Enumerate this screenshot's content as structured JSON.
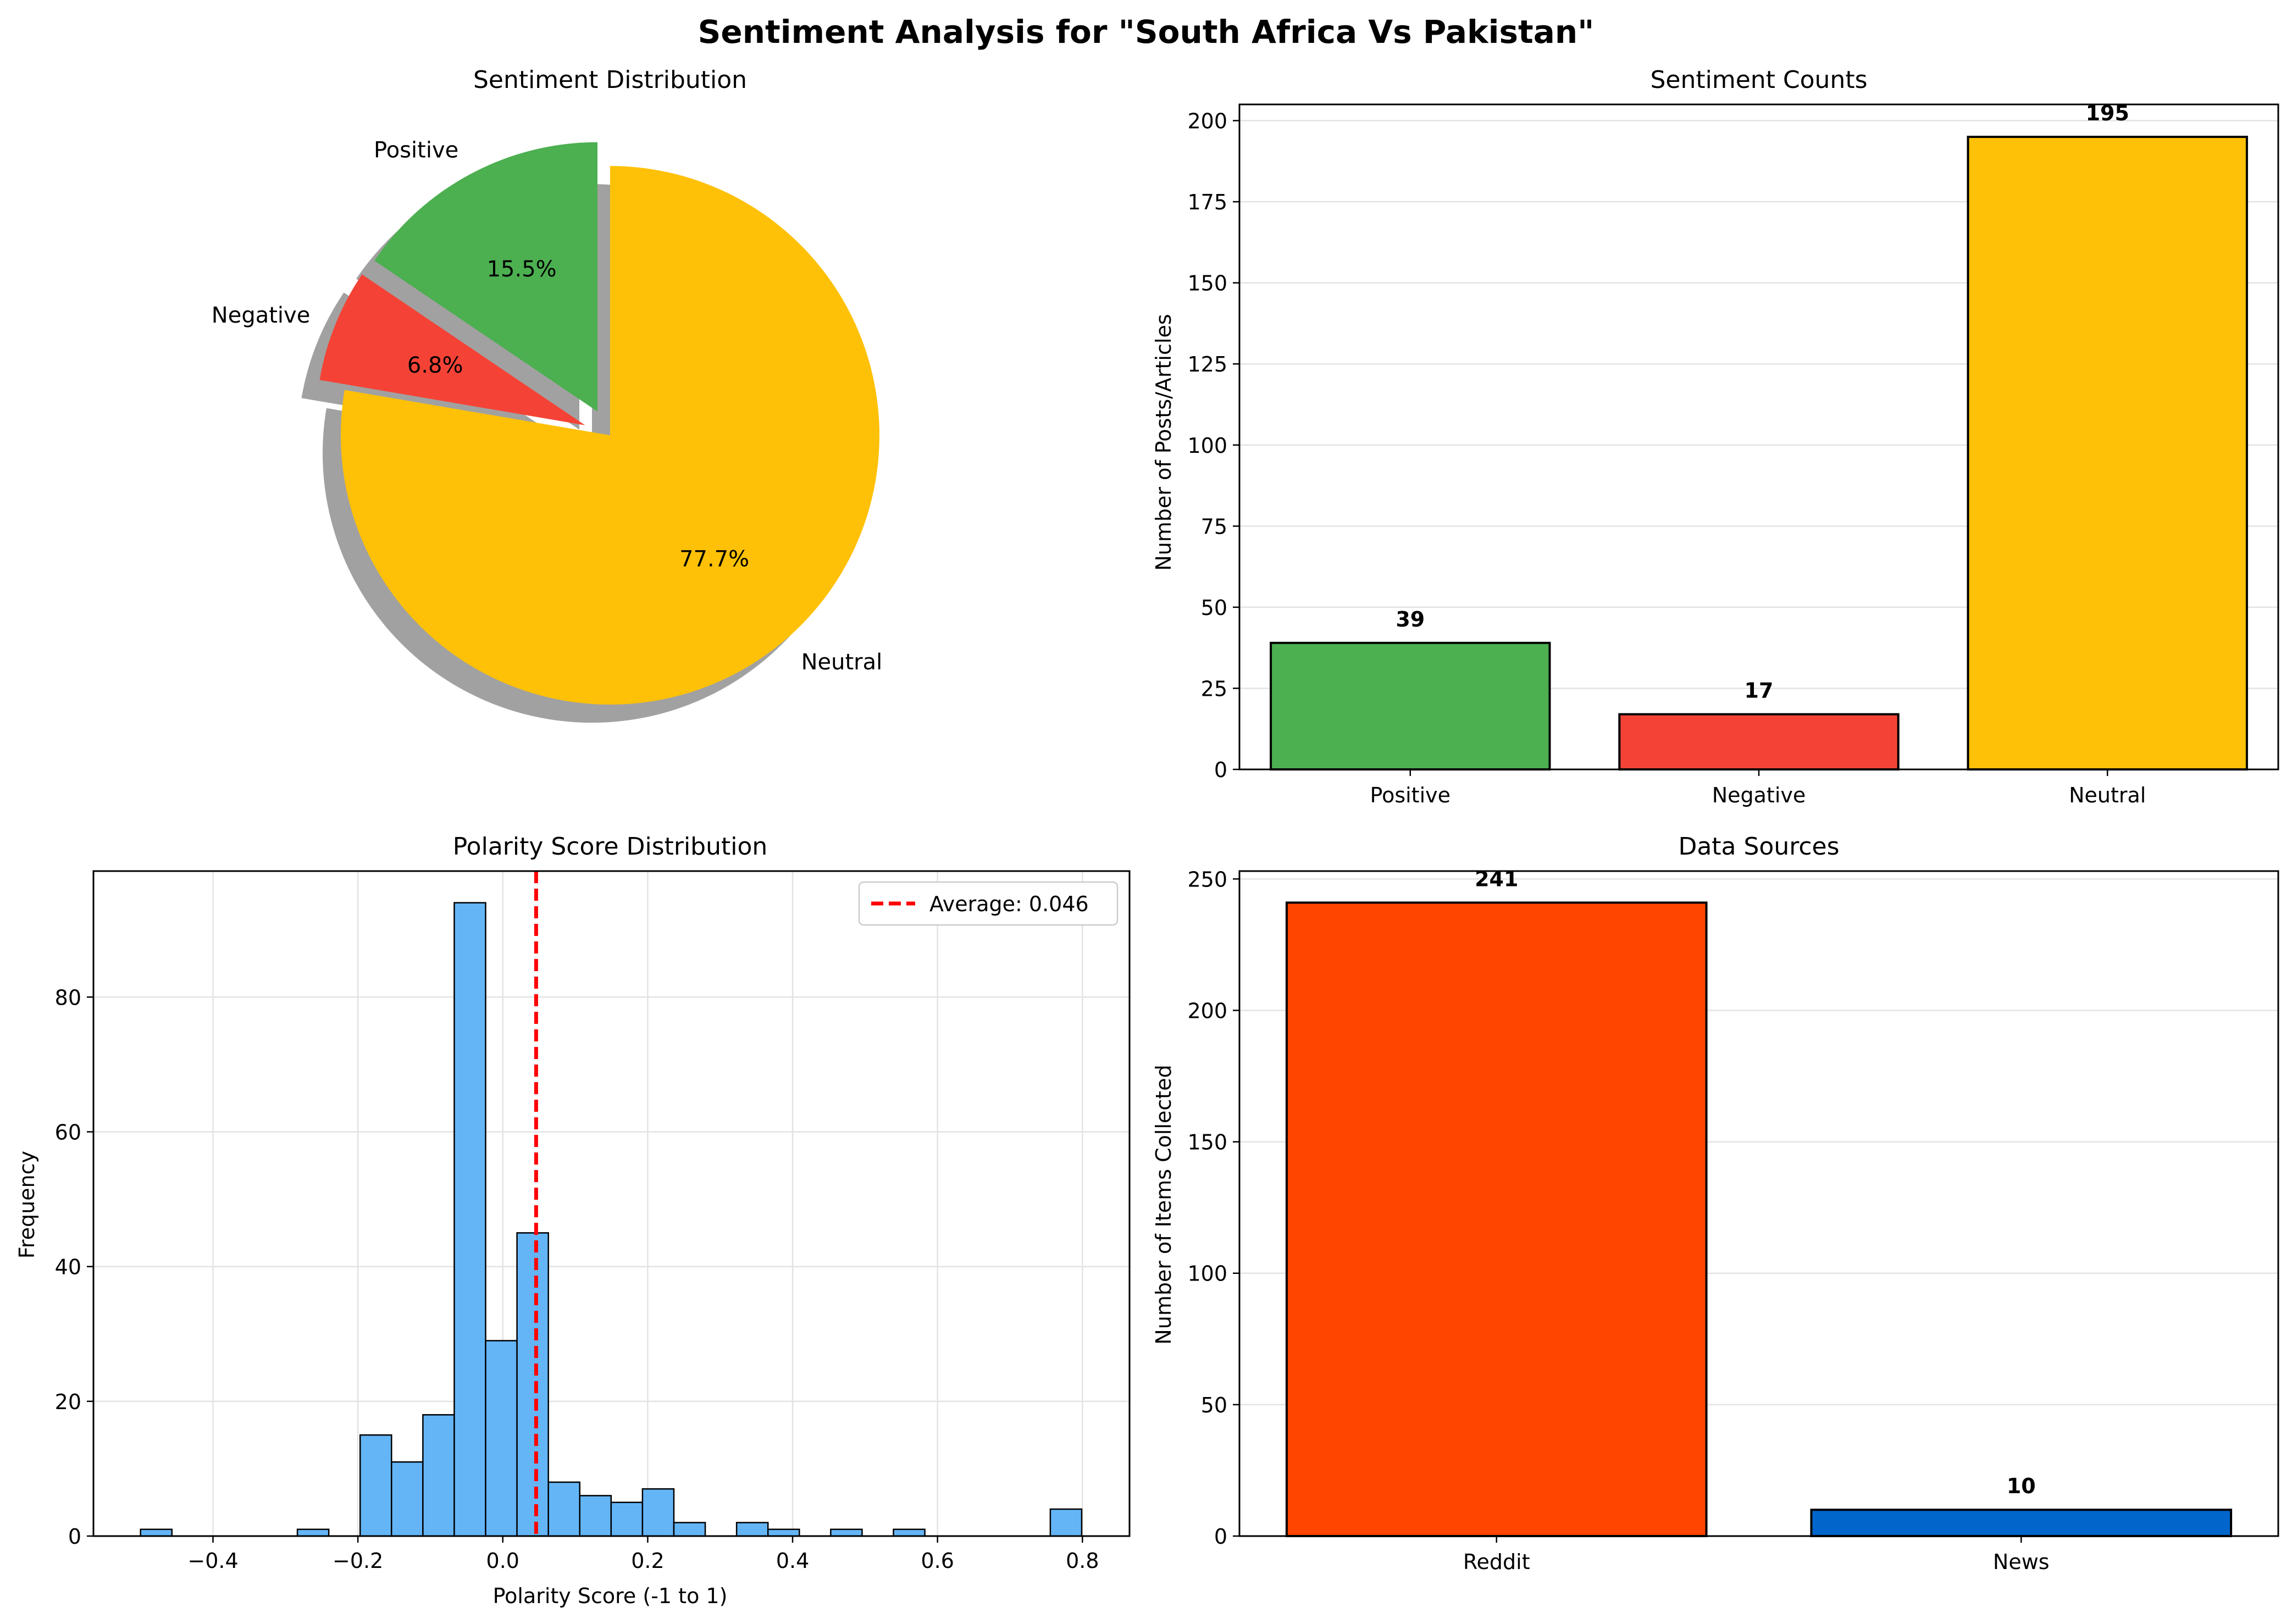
{
  "figure": {
    "title": "Sentiment Analysis for \"South Africa Vs Pakistan\""
  },
  "colors": {
    "positive": "#4caf50",
    "negative": "#f44336",
    "neutral": "#ffc107",
    "hist": "#64b5f6",
    "avg_line": "#ff0000",
    "reddit": "#ff4500",
    "news": "#0066cc"
  },
  "chart_data": [
    {
      "type": "pie",
      "title": "Sentiment Distribution",
      "labels": [
        "Positive",
        "Negative",
        "Neutral"
      ],
      "values": [
        39,
        17,
        195
      ],
      "percent_labels": [
        "15.5%",
        "6.8%",
        "77.7%"
      ],
      "explode": [
        0.1,
        0.1,
        0
      ],
      "shadow": true,
      "start_angle_deg": 90
    },
    {
      "type": "bar",
      "title": "Sentiment Counts",
      "categories": [
        "Positive",
        "Negative",
        "Neutral"
      ],
      "values": [
        39,
        17,
        195
      ],
      "value_labels": [
        "39",
        "17",
        "195"
      ],
      "ylabel": "Number of Posts/Articles",
      "ylim": [
        0,
        205
      ],
      "yticks": [
        0,
        25,
        50,
        75,
        100,
        125,
        150,
        175,
        200
      ],
      "grid": "y"
    },
    {
      "type": "bar",
      "subtype": "histogram",
      "title": "Polarity Score Distribution",
      "xlabel": "Polarity Score (-1 to 1)",
      "ylabel": "Frequency",
      "bin_start": -0.5,
      "bin_width": 0.0433,
      "counts": [
        1,
        0,
        0,
        0,
        0,
        1,
        0,
        15,
        11,
        18,
        94,
        29,
        45,
        8,
        6,
        5,
        7,
        2,
        0,
        2,
        1,
        0,
        1,
        0,
        1,
        0,
        0,
        0,
        0,
        4
      ],
      "xlim": [
        -0.565,
        0.865
      ],
      "ylim": [
        0,
        98.7
      ],
      "xticks": [
        -0.4,
        -0.2,
        0.0,
        0.2,
        0.4,
        0.6,
        0.8
      ],
      "xtick_labels": [
        "−0.4",
        "−0.2",
        "0.0",
        "0.2",
        "0.4",
        "0.6",
        "0.8"
      ],
      "yticks": [
        0,
        20,
        40,
        60,
        80
      ],
      "average": 0.046,
      "legend": [
        "Average: 0.046"
      ],
      "legend_position": "top-right",
      "grid": "both"
    },
    {
      "type": "bar",
      "title": "Data Sources",
      "categories": [
        "Reddit",
        "News"
      ],
      "values": [
        241,
        10
      ],
      "value_labels": [
        "241",
        "10"
      ],
      "ylabel": "Number of Items Collected",
      "ylim": [
        0,
        253
      ],
      "yticks": [
        0,
        50,
        100,
        150,
        200,
        250
      ],
      "grid": "y"
    }
  ]
}
